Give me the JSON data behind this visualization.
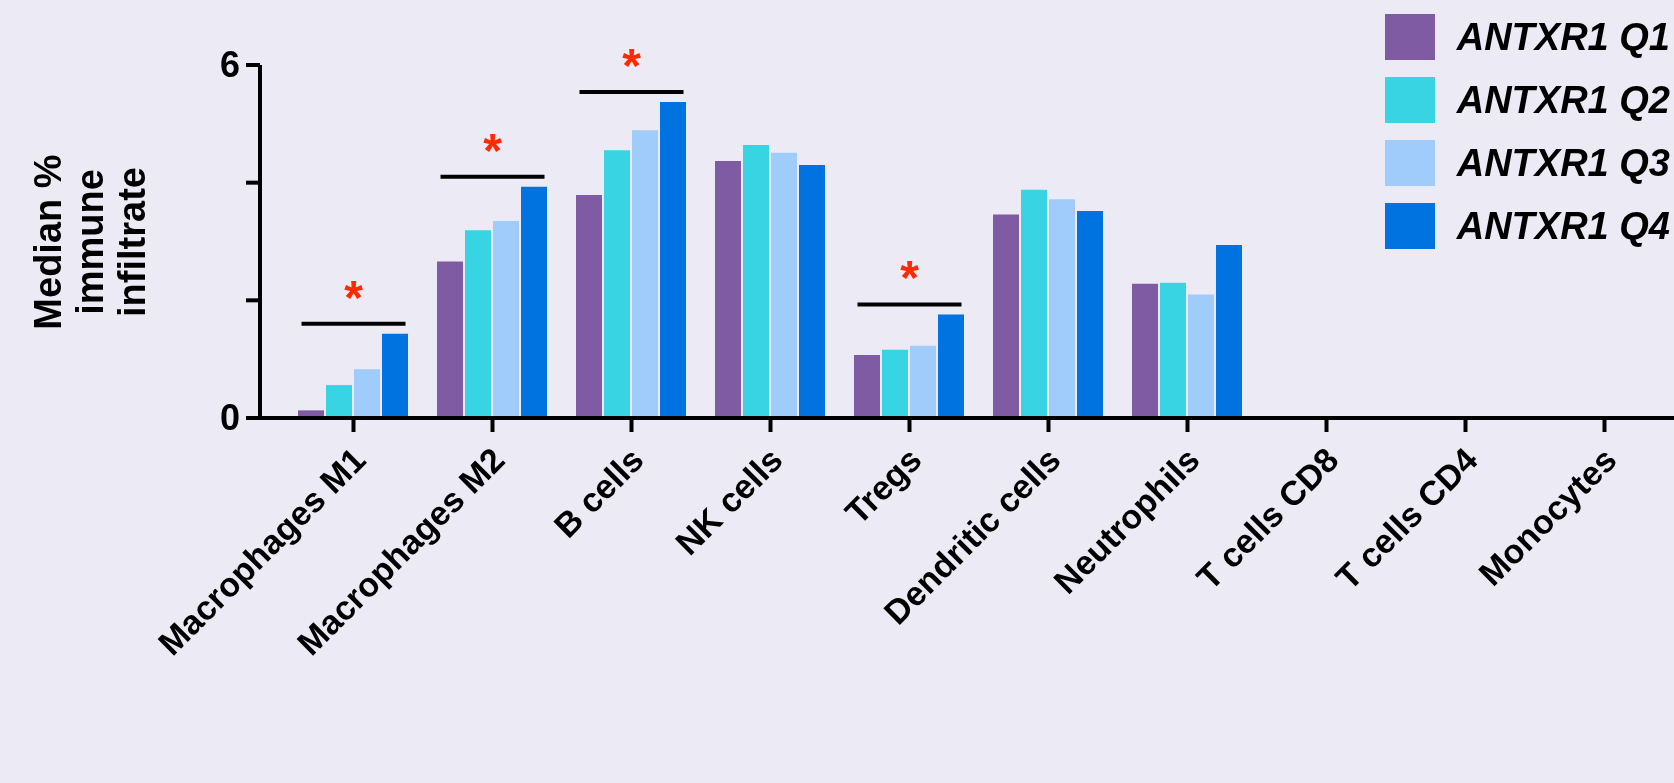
{
  "chart_data": {
    "type": "bar",
    "ylabel": "Median % immune infiltrate",
    "categories": [
      "Macrophages M1",
      "Macrophages M2",
      "B cells",
      "NK cells",
      "Tregs",
      "Dendritic cells",
      "Neutrophils",
      "T cells CD8",
      "T cells CD4",
      "Monocytes"
    ],
    "series": [
      {
        "name": "ANTXR1 Q1",
        "color": "#7f5ba3",
        "values": [
          0.13,
          2.66,
          3.79,
          4.37,
          1.07,
          3.46,
          2.28,
          null,
          null,
          null
        ]
      },
      {
        "name": "ANTXR1 Q2",
        "color": "#38d4e4",
        "values": [
          0.56,
          3.19,
          4.55,
          4.64,
          1.16,
          3.88,
          2.3,
          null,
          null,
          null
        ]
      },
      {
        "name": "ANTXR1 Q3",
        "color": "#a0ccfb",
        "values": [
          0.83,
          3.35,
          4.89,
          4.51,
          1.23,
          3.72,
          2.1,
          null,
          null,
          null
        ]
      },
      {
        "name": "ANTXR1 Q4",
        "color": "#0073e0",
        "values": [
          1.43,
          3.93,
          5.37,
          4.3,
          1.76,
          3.52,
          2.94,
          null,
          null,
          null
        ]
      }
    ],
    "ylim": [
      0,
      6
    ],
    "yticks": [
      {
        "value": 0,
        "label": "0"
      },
      {
        "value": 2,
        "label": null
      },
      {
        "value": 4,
        "label": null
      },
      {
        "value": 6,
        "label": "6"
      }
    ],
    "grid": false,
    "legend": "top right",
    "annotations": [
      "*",
      "*",
      "*",
      "*"
    ]
  }
}
